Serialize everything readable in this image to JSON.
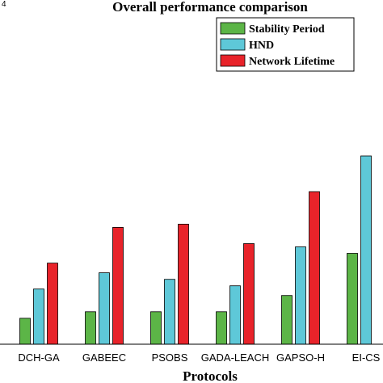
{
  "chart_data": {
    "type": "bar",
    "title": "Overall performance comparison",
    "xlabel": "Protocols",
    "ylabel": "",
    "y_axis_edge_fragment": "4",
    "ylim": [
      0,
      235
    ],
    "categories": [
      "DCH-GA",
      "GABEEC",
      "PSOBS",
      "GADA-LEACH",
      "GAPSO-H",
      "EI-CS"
    ],
    "series": [
      {
        "name": "Stability Period",
        "color": "#5cb547",
        "values": [
          32,
          40,
          40,
          40,
          60,
          112
        ]
      },
      {
        "name": "HND",
        "color": "#5ec8d8",
        "values": [
          68,
          88,
          80,
          72,
          120,
          232
        ]
      },
      {
        "name": "Network Lifetime",
        "color": "#e8232a",
        "values": [
          100,
          144,
          148,
          124,
          188,
          0
        ]
      }
    ],
    "grid": false,
    "legend_position": "top-right"
  }
}
